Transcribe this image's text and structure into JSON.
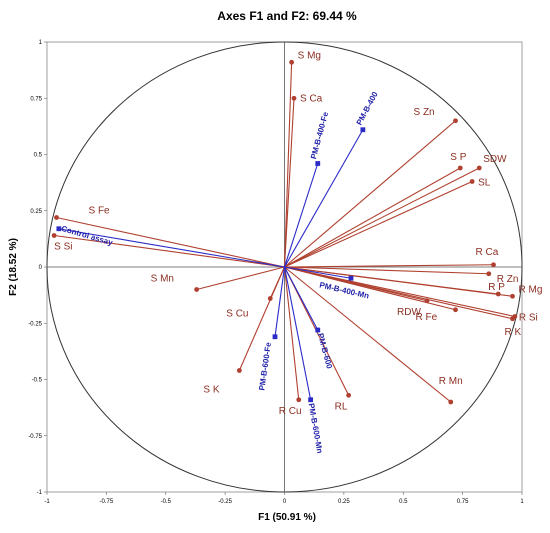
{
  "chart_data": {
    "type": "scatter",
    "subtype": "pca-correlation-circle",
    "title": "Axes F1 and F2: 69.44 %",
    "xlabel": "F1 (50.91 %)",
    "ylabel": "F2 (18.52 %)",
    "xlim": [
      -1,
      1
    ],
    "ylim": [
      -1,
      1
    ],
    "x_ticks": [
      "-1",
      "-0.75",
      "-0.5",
      "-0.25",
      "0",
      "0.25",
      "0.5",
      "0.75",
      "1"
    ],
    "y_ticks": [
      "1",
      "0.75",
      "0.5",
      "0.25",
      "0",
      "-0.25",
      "-0.5",
      "-0.75",
      "-1"
    ],
    "grid": false,
    "colors": {
      "variables": "#b0402f",
      "observations": "#2b2bc8",
      "circle": "#333333",
      "axes": "#555555"
    },
    "series": [
      {
        "role": "variables",
        "points": [
          {
            "label": "S Mg",
            "x": 0.03,
            "y": 0.91
          },
          {
            "label": "S Ca",
            "x": 0.04,
            "y": 0.75
          },
          {
            "label": "S Zn",
            "x": 0.72,
            "y": 0.65
          },
          {
            "label": "S P",
            "x": 0.74,
            "y": 0.44
          },
          {
            "label": "SDW",
            "x": 0.82,
            "y": 0.44
          },
          {
            "label": "SL",
            "x": 0.79,
            "y": 0.38
          },
          {
            "label": "S Fe",
            "x": -0.96,
            "y": 0.22
          },
          {
            "label": "S Si",
            "x": -0.97,
            "y": 0.14
          },
          {
            "label": "R Ca",
            "x": 0.88,
            "y": 0.01
          },
          {
            "label": "R Zn",
            "x": 0.86,
            "y": -0.03
          },
          {
            "label": "R P",
            "x": 0.9,
            "y": -0.12
          },
          {
            "label": "R Mg",
            "x": 0.96,
            "y": -0.13
          },
          {
            "label": "R Si",
            "x": 0.97,
            "y": -0.22
          },
          {
            "label": "R K",
            "x": 0.96,
            "y": -0.23
          },
          {
            "label": "RDW",
            "x": 0.6,
            "y": -0.15
          },
          {
            "label": "R Fe",
            "x": 0.72,
            "y": -0.19
          },
          {
            "label": "S Mn",
            "x": -0.37,
            "y": -0.1
          },
          {
            "label": "S Cu",
            "x": -0.06,
            "y": -0.14
          },
          {
            "label": "S K",
            "x": -0.19,
            "y": -0.46
          },
          {
            "label": "R Cu",
            "x": 0.06,
            "y": -0.59
          },
          {
            "label": "RL",
            "x": 0.27,
            "y": -0.57
          },
          {
            "label": "R Mn",
            "x": 0.7,
            "y": -0.6
          }
        ]
      },
      {
        "role": "observations",
        "points": [
          {
            "label": "PM-B-400-Fe",
            "x": 0.14,
            "y": 0.46
          },
          {
            "label": "PM-B-400",
            "x": 0.33,
            "y": 0.61
          },
          {
            "label": "Control assay",
            "x": -0.95,
            "y": 0.17
          },
          {
            "label": "PM-B-400-Mn",
            "x": 0.28,
            "y": -0.05
          },
          {
            "label": "PM-B-600",
            "x": 0.14,
            "y": -0.28
          },
          {
            "label": "PM-B-600-Fe",
            "x": -0.04,
            "y": -0.31
          },
          {
            "label": "PM-B-600-Mn",
            "x": 0.11,
            "y": -0.59
          }
        ]
      }
    ]
  }
}
